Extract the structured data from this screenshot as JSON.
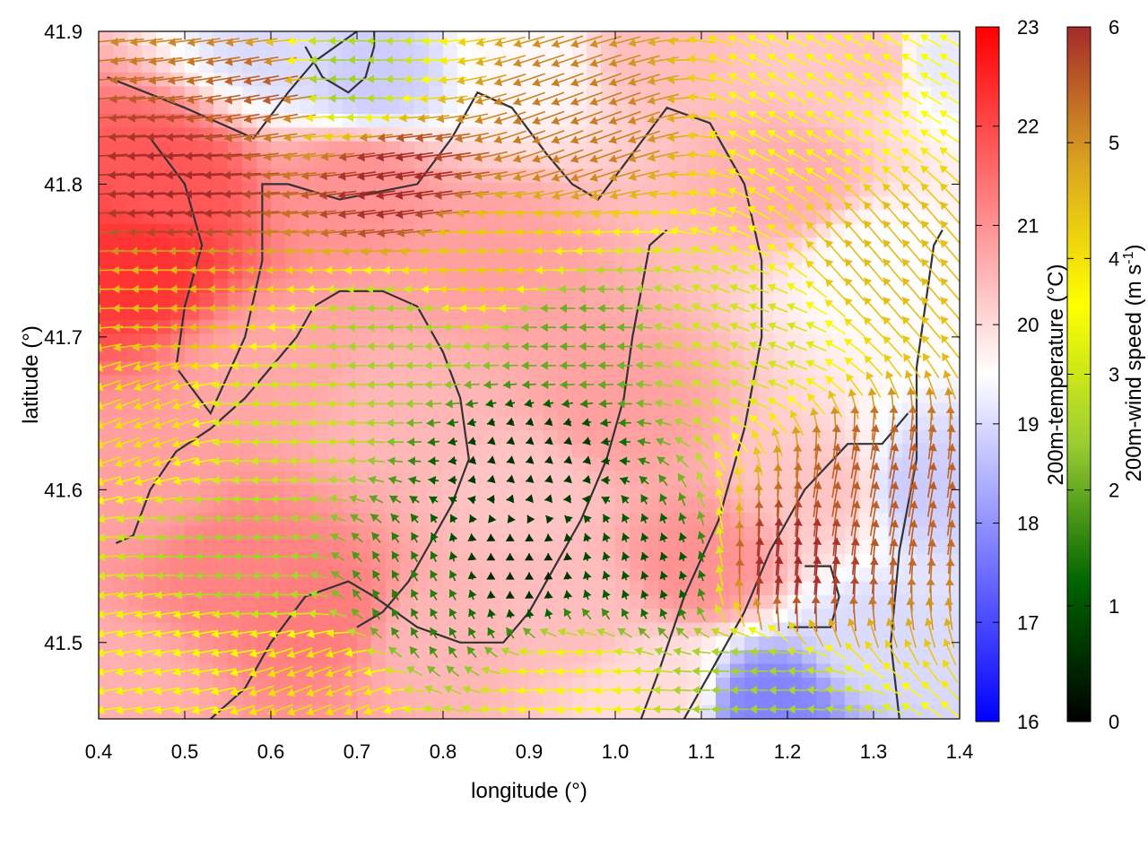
{
  "chart_data": {
    "type": "heatmap",
    "title": "",
    "xlabel": "longitude (°)",
    "ylabel": "latitude (°)",
    "xlim": [
      0.4,
      1.4
    ],
    "ylim": [
      41.45,
      41.9
    ],
    "xticks": [
      0.4,
      0.5,
      0.6,
      0.7,
      0.8,
      0.9,
      1.0,
      1.1,
      1.2,
      1.3,
      1.4
    ],
    "xtick_labels": [
      "0.4",
      "0.5",
      "0.6",
      "0.7",
      "0.8",
      "0.9",
      "1.0",
      "1.1",
      "1.2",
      "1.3",
      "1.4"
    ],
    "yticks": [
      41.5,
      41.6,
      41.7,
      41.8,
      41.9
    ],
    "ytick_labels": [
      "41.5",
      "41.6",
      "41.7",
      "41.8",
      "41.9"
    ],
    "grid": false,
    "temperature_colorbar": {
      "label": "200m-temperature (°C)",
      "range": [
        16,
        23
      ],
      "ticks": [
        16,
        17,
        18,
        19,
        20,
        21,
        22,
        23
      ],
      "tick_labels": [
        "16",
        "17",
        "18",
        "19",
        "20",
        "21",
        "22",
        "23"
      ],
      "colors": [
        "#0000ff",
        "#ffffff",
        "#ff0000"
      ]
    },
    "wind_colorbar": {
      "label": "200m-wind speed (m s-1)",
      "label_parts": {
        "main": "200m-wind speed (m s",
        "superscript": "-1",
        "close": ")"
      },
      "range": [
        0,
        6
      ],
      "ticks": [
        0,
        1,
        2,
        3,
        4,
        5,
        6
      ],
      "tick_labels": [
        "0",
        "1",
        "2",
        "3",
        "4",
        "5",
        "6"
      ],
      "colors": [
        "#000000",
        "#006400",
        "#9acd32",
        "#ffff00",
        "#daa520",
        "#a52a2a"
      ]
    },
    "temperature_field": [
      {
        "lon": 0.45,
        "lat": 41.75,
        "temp": 22.3
      },
      {
        "lon": 0.48,
        "lat": 41.8,
        "temp": 21.8
      },
      {
        "lon": 0.55,
        "lat": 41.55,
        "temp": 21.2
      },
      {
        "lon": 0.65,
        "lat": 41.52,
        "temp": 21.3
      },
      {
        "lon": 0.7,
        "lat": 41.8,
        "temp": 21.0
      },
      {
        "lon": 0.85,
        "lat": 41.75,
        "temp": 20.8
      },
      {
        "lon": 1.0,
        "lat": 41.65,
        "temp": 20.8
      },
      {
        "lon": 1.1,
        "lat": 41.55,
        "temp": 21.0
      },
      {
        "lon": 0.9,
        "lat": 41.6,
        "temp": 20.3
      },
      {
        "lon": 0.8,
        "lat": 41.5,
        "temp": 20.5
      },
      {
        "lon": 1.2,
        "lat": 41.8,
        "temp": 20.6
      },
      {
        "lon": 1.3,
        "lat": 41.75,
        "temp": 19.5
      },
      {
        "lon": 1.35,
        "lat": 41.6,
        "temp": 18.8
      },
      {
        "lon": 1.25,
        "lat": 41.6,
        "temp": 20.3
      },
      {
        "lon": 1.18,
        "lat": 41.46,
        "temp": 17.8
      },
      {
        "lon": 1.3,
        "lat": 41.5,
        "temp": 19.0
      },
      {
        "lon": 0.62,
        "lat": 41.89,
        "temp": 19.0
      },
      {
        "lon": 0.72,
        "lat": 41.87,
        "temp": 18.8
      },
      {
        "lon": 0.9,
        "lat": 41.88,
        "temp": 19.6
      },
      {
        "lon": 1.05,
        "lat": 41.89,
        "temp": 20.4
      },
      {
        "lon": 1.3,
        "lat": 41.88,
        "temp": 20.3
      },
      {
        "lon": 0.6,
        "lat": 41.68,
        "temp": 20.7
      },
      {
        "lon": 0.75,
        "lat": 41.65,
        "temp": 20.5
      },
      {
        "lon": 0.95,
        "lat": 41.52,
        "temp": 20.4
      },
      {
        "lon": 1.05,
        "lat": 41.47,
        "temp": 20.0
      },
      {
        "lon": 0.45,
        "lat": 41.6,
        "temp": 20.8
      },
      {
        "lon": 1.38,
        "lat": 41.88,
        "temp": 19.2
      },
      {
        "lon": 0.42,
        "lat": 41.47,
        "temp": 20.6
      }
    ],
    "wind_regions": [
      {
        "lon": 0.6,
        "lat": 41.86,
        "dir_deg": 190,
        "speed": 5.5
      },
      {
        "lon": 0.5,
        "lat": 41.8,
        "dir_deg": 183,
        "speed": 6.0
      },
      {
        "lon": 0.75,
        "lat": 41.8,
        "dir_deg": 188,
        "speed": 6.0
      },
      {
        "lon": 0.95,
        "lat": 41.84,
        "dir_deg": 200,
        "speed": 5.2
      },
      {
        "lon": 0.68,
        "lat": 41.87,
        "dir_deg": 180,
        "speed": 2.5
      },
      {
        "lon": 0.85,
        "lat": 41.75,
        "dir_deg": 182,
        "speed": 4.3
      },
      {
        "lon": 0.5,
        "lat": 41.72,
        "dir_deg": 180,
        "speed": 4.5
      },
      {
        "lon": 0.6,
        "lat": 41.65,
        "dir_deg": 180,
        "speed": 3.0
      },
      {
        "lon": 0.75,
        "lat": 41.7,
        "dir_deg": 180,
        "speed": 2.5
      },
      {
        "lon": 0.95,
        "lat": 41.7,
        "dir_deg": 180,
        "speed": 2.0
      },
      {
        "lon": 0.9,
        "lat": 41.62,
        "dir_deg": 200,
        "speed": 0.6
      },
      {
        "lon": 0.88,
        "lat": 41.55,
        "dir_deg": 90,
        "speed": 0.5
      },
      {
        "lon": 0.78,
        "lat": 41.53,
        "dir_deg": 120,
        "speed": 1.5
      },
      {
        "lon": 0.55,
        "lat": 41.55,
        "dir_deg": 180,
        "speed": 2.5
      },
      {
        "lon": 0.5,
        "lat": 41.5,
        "dir_deg": 190,
        "speed": 3.5
      },
      {
        "lon": 1.05,
        "lat": 41.55,
        "dir_deg": 110,
        "speed": 1.0
      },
      {
        "lon": 1.15,
        "lat": 41.7,
        "dir_deg": 160,
        "speed": 3.0
      },
      {
        "lon": 1.2,
        "lat": 41.55,
        "dir_deg": 85,
        "speed": 6.0
      },
      {
        "lon": 1.3,
        "lat": 41.6,
        "dir_deg": 80,
        "speed": 5.5
      },
      {
        "lon": 1.32,
        "lat": 41.75,
        "dir_deg": 130,
        "speed": 4.5
      },
      {
        "lon": 1.25,
        "lat": 41.85,
        "dir_deg": 150,
        "speed": 3.5
      },
      {
        "lon": 1.15,
        "lat": 41.47,
        "dir_deg": 180,
        "speed": 2.5
      },
      {
        "lon": 0.95,
        "lat": 41.47,
        "dir_deg": 185,
        "speed": 3.5
      },
      {
        "lon": 0.65,
        "lat": 41.47,
        "dir_deg": 200,
        "speed": 4.0
      },
      {
        "lon": 0.45,
        "lat": 41.65,
        "dir_deg": 200,
        "speed": 4.0
      }
    ],
    "contour_lines": [
      [
        [
          0.41,
          41.87
        ],
        [
          0.5,
          41.85
        ],
        [
          0.58,
          41.83
        ],
        [
          0.62,
          41.86
        ],
        [
          0.65,
          41.88
        ],
        [
          0.7,
          41.9
        ]
      ],
      [
        [
          0.46,
          41.83
        ],
        [
          0.5,
          41.8
        ],
        [
          0.52,
          41.76
        ],
        [
          0.5,
          41.72
        ],
        [
          0.49,
          41.68
        ],
        [
          0.53,
          41.65
        ],
        [
          0.57,
          41.7
        ],
        [
          0.59,
          41.75
        ],
        [
          0.59,
          41.8
        ],
        [
          0.62,
          41.8
        ],
        [
          0.68,
          41.79
        ],
        [
          0.77,
          41.8
        ],
        [
          0.81,
          41.83
        ],
        [
          0.84,
          41.86
        ],
        [
          0.88,
          41.85
        ],
        [
          0.92,
          41.82
        ],
        [
          0.95,
          41.8
        ],
        [
          0.98,
          41.79
        ],
        [
          1.02,
          41.82
        ],
        [
          1.06,
          41.85
        ],
        [
          1.11,
          41.84
        ],
        [
          1.15,
          41.8
        ],
        [
          1.17,
          41.75
        ],
        [
          1.17,
          41.7
        ],
        [
          1.15,
          41.64
        ],
        [
          1.12,
          41.58
        ],
        [
          1.08,
          41.53
        ],
        [
          1.05,
          41.48
        ],
        [
          1.03,
          41.45
        ]
      ],
      [
        [
          0.42,
          41.565
        ],
        [
          0.44,
          41.57
        ],
        [
          0.46,
          41.6
        ],
        [
          0.49,
          41.625
        ],
        [
          0.53,
          41.64
        ],
        [
          0.57,
          41.66
        ],
        [
          0.6,
          41.68
        ],
        [
          0.63,
          41.7
        ],
        [
          0.65,
          41.72
        ],
        [
          0.68,
          41.73
        ],
        [
          0.73,
          41.73
        ],
        [
          0.77,
          41.72
        ],
        [
          0.8,
          41.69
        ],
        [
          0.82,
          41.66
        ],
        [
          0.83,
          41.62
        ],
        [
          0.81,
          41.59
        ],
        [
          0.78,
          41.56
        ],
        [
          0.76,
          41.54
        ],
        [
          0.73,
          41.52
        ],
        [
          0.7,
          41.51
        ]
      ],
      [
        [
          0.53,
          41.45
        ],
        [
          0.57,
          41.47
        ],
        [
          0.6,
          41.5
        ],
        [
          0.64,
          41.53
        ],
        [
          0.69,
          41.54
        ],
        [
          0.72,
          41.53
        ],
        [
          0.77,
          41.51
        ],
        [
          0.82,
          41.5
        ],
        [
          0.87,
          41.5
        ],
        [
          0.9,
          41.52
        ],
        [
          0.93,
          41.55
        ],
        [
          0.96,
          41.58
        ],
        [
          0.99,
          41.62
        ],
        [
          1.01,
          41.66
        ],
        [
          1.02,
          41.7
        ],
        [
          1.03,
          41.73
        ],
        [
          1.04,
          41.76
        ],
        [
          1.06,
          41.77
        ]
      ],
      [
        [
          1.33,
          41.45
        ],
        [
          1.32,
          41.5
        ],
        [
          1.33,
          41.56
        ],
        [
          1.35,
          41.62
        ],
        [
          1.35,
          41.68
        ],
        [
          1.36,
          41.72
        ],
        [
          1.37,
          41.76
        ],
        [
          1.38,
          41.77
        ]
      ],
      [
        [
          1.08,
          41.45
        ],
        [
          1.12,
          41.49
        ],
        [
          1.15,
          41.52
        ],
        [
          1.18,
          41.56
        ],
        [
          1.22,
          41.6
        ],
        [
          1.27,
          41.63
        ],
        [
          1.31,
          41.63
        ],
        [
          1.34,
          41.65
        ]
      ],
      [
        [
          1.2,
          41.51
        ],
        [
          1.25,
          41.51
        ],
        [
          1.26,
          41.53
        ],
        [
          1.25,
          41.55
        ],
        [
          1.22,
          41.55
        ]
      ],
      [
        [
          0.64,
          41.89
        ],
        [
          0.66,
          41.87
        ],
        [
          0.69,
          41.86
        ],
        [
          0.71,
          41.87
        ],
        [
          0.72,
          41.89
        ],
        [
          0.72,
          41.9
        ]
      ]
    ]
  }
}
